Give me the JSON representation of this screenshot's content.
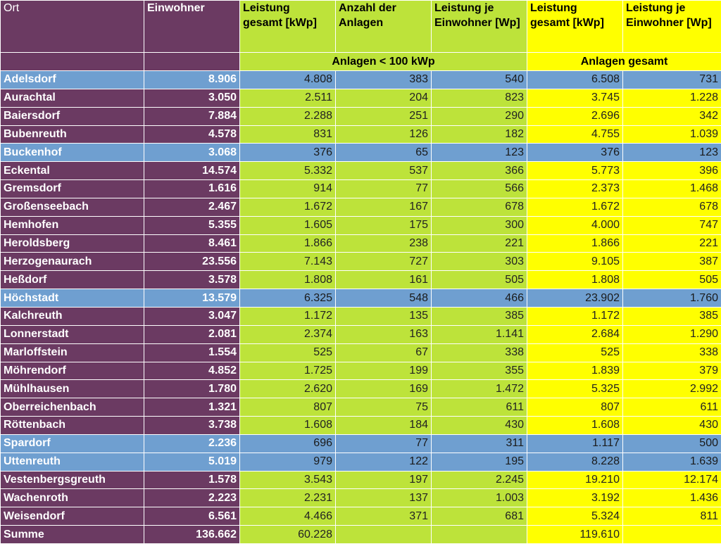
{
  "headers": {
    "ort": "Ort",
    "einwohner": "Einwohner",
    "leistung_gesamt": "Leistung gesamt [kWp]",
    "anzahl_anlagen": "Anzahl der Anlagen",
    "leistung_je_einwohner": "Leistung je Einwohner [Wp]",
    "leistung_gesamt_2": "Leistung gesamt [kWp]",
    "leistung_je_einwohner_2": "Leistung je Einwohner [Wp]"
  },
  "group_labels": {
    "small": "Anlagen < 100 kWp",
    "all": "Anlagen gesamt"
  },
  "colors": {
    "purple": "#6b3a62",
    "green": "#bde33a",
    "yellow": "#ffff00",
    "blue_highlight": "#6f9fd0"
  },
  "rows": [
    {
      "ort": "Adelsdorf",
      "einwohner": "8.906",
      "leistung": "4.808",
      "anzahl": "383",
      "je_einwohner": "540",
      "leistung_gesamt": "6.508",
      "je_einwohner_gesamt": "731",
      "highlight": true
    },
    {
      "ort": "Aurachtal",
      "einwohner": "3.050",
      "leistung": "2.511",
      "anzahl": "204",
      "je_einwohner": "823",
      "leistung_gesamt": "3.745",
      "je_einwohner_gesamt": "1.228",
      "highlight": false
    },
    {
      "ort": "Baiersdorf",
      "einwohner": "7.884",
      "leistung": "2.288",
      "anzahl": "251",
      "je_einwohner": "290",
      "leistung_gesamt": "2.696",
      "je_einwohner_gesamt": "342",
      "highlight": false
    },
    {
      "ort": "Bubenreuth",
      "einwohner": "4.578",
      "leistung": "831",
      "anzahl": "126",
      "je_einwohner": "182",
      "leistung_gesamt": "4.755",
      "je_einwohner_gesamt": "1.039",
      "highlight": false
    },
    {
      "ort": "Buckenhof",
      "einwohner": "3.068",
      "leistung": "376",
      "anzahl": "65",
      "je_einwohner": "123",
      "leistung_gesamt": "376",
      "je_einwohner_gesamt": "123",
      "highlight": true
    },
    {
      "ort": "Eckental",
      "einwohner": "14.574",
      "leistung": "5.332",
      "anzahl": "537",
      "je_einwohner": "366",
      "leistung_gesamt": "5.773",
      "je_einwohner_gesamt": "396",
      "highlight": false
    },
    {
      "ort": "Gremsdorf",
      "einwohner": "1.616",
      "leistung": "914",
      "anzahl": "77",
      "je_einwohner": "566",
      "leistung_gesamt": "2.373",
      "je_einwohner_gesamt": "1.468",
      "highlight": false
    },
    {
      "ort": "Großenseebach",
      "einwohner": "2.467",
      "leistung": "1.672",
      "anzahl": "167",
      "je_einwohner": "678",
      "leistung_gesamt": "1.672",
      "je_einwohner_gesamt": "678",
      "highlight": false
    },
    {
      "ort": "Hemhofen",
      "einwohner": "5.355",
      "leistung": "1.605",
      "anzahl": "175",
      "je_einwohner": "300",
      "leistung_gesamt": "4.000",
      "je_einwohner_gesamt": "747",
      "highlight": false
    },
    {
      "ort": "Heroldsberg",
      "einwohner": "8.461",
      "leistung": "1.866",
      "anzahl": "238",
      "je_einwohner": "221",
      "leistung_gesamt": "1.866",
      "je_einwohner_gesamt": "221",
      "highlight": false
    },
    {
      "ort": "Herzogenaurach",
      "einwohner": "23.556",
      "leistung": "7.143",
      "anzahl": "727",
      "je_einwohner": "303",
      "leistung_gesamt": "9.105",
      "je_einwohner_gesamt": "387",
      "highlight": false
    },
    {
      "ort": "Heßdorf",
      "einwohner": "3.578",
      "leistung": "1.808",
      "anzahl": "161",
      "je_einwohner": "505",
      "leistung_gesamt": "1.808",
      "je_einwohner_gesamt": "505",
      "highlight": false
    },
    {
      "ort": "Höchstadt",
      "einwohner": "13.579",
      "leistung": "6.325",
      "anzahl": "548",
      "je_einwohner": "466",
      "leistung_gesamt": "23.902",
      "je_einwohner_gesamt": "1.760",
      "highlight": true
    },
    {
      "ort": "Kalchreuth",
      "einwohner": "3.047",
      "leistung": "1.172",
      "anzahl": "135",
      "je_einwohner": "385",
      "leistung_gesamt": "1.172",
      "je_einwohner_gesamt": "385",
      "highlight": false
    },
    {
      "ort": "Lonnerstadt",
      "einwohner": "2.081",
      "leistung": "2.374",
      "anzahl": "163",
      "je_einwohner": "1.141",
      "leistung_gesamt": "2.684",
      "je_einwohner_gesamt": "1.290",
      "highlight": false
    },
    {
      "ort": "Marloffstein",
      "einwohner": "1.554",
      "leistung": "525",
      "anzahl": "67",
      "je_einwohner": "338",
      "leistung_gesamt": "525",
      "je_einwohner_gesamt": "338",
      "highlight": false
    },
    {
      "ort": "Möhrendorf",
      "einwohner": "4.852",
      "leistung": "1.725",
      "anzahl": "199",
      "je_einwohner": "355",
      "leistung_gesamt": "1.839",
      "je_einwohner_gesamt": "379",
      "highlight": false
    },
    {
      "ort": "Mühlhausen",
      "einwohner": "1.780",
      "leistung": "2.620",
      "anzahl": "169",
      "je_einwohner": "1.472",
      "leistung_gesamt": "5.325",
      "je_einwohner_gesamt": "2.992",
      "highlight": false
    },
    {
      "ort": "Oberreichenbach",
      "einwohner": "1.321",
      "leistung": "807",
      "anzahl": "75",
      "je_einwohner": "611",
      "leistung_gesamt": "807",
      "je_einwohner_gesamt": "611",
      "highlight": false
    },
    {
      "ort": "Röttenbach",
      "einwohner": "3.738",
      "leistung": "1.608",
      "anzahl": "184",
      "je_einwohner": "430",
      "leistung_gesamt": "1.608",
      "je_einwohner_gesamt": "430",
      "highlight": false
    },
    {
      "ort": "Spardorf",
      "einwohner": "2.236",
      "leistung": "696",
      "anzahl": "77",
      "je_einwohner": "311",
      "leistung_gesamt": "1.117",
      "je_einwohner_gesamt": "500",
      "highlight": true
    },
    {
      "ort": "Uttenreuth",
      "einwohner": "5.019",
      "leistung": "979",
      "anzahl": "122",
      "je_einwohner": "195",
      "leistung_gesamt": "8.228",
      "je_einwohner_gesamt": "1.639",
      "highlight": true
    },
    {
      "ort": "Vestenbergsgreuth",
      "einwohner": "1.578",
      "leistung": "3.543",
      "anzahl": "197",
      "je_einwohner": "2.245",
      "leistung_gesamt": "19.210",
      "je_einwohner_gesamt": "12.174",
      "highlight": false
    },
    {
      "ort": "Wachenroth",
      "einwohner": "2.223",
      "leistung": "2.231",
      "anzahl": "137",
      "je_einwohner": "1.003",
      "leistung_gesamt": "3.192",
      "je_einwohner_gesamt": "1.436",
      "highlight": false
    },
    {
      "ort": "Weisendorf",
      "einwohner": "6.561",
      "leistung": "4.466",
      "anzahl": "371",
      "je_einwohner": "681",
      "leistung_gesamt": "5.324",
      "je_einwohner_gesamt": "811",
      "highlight": false
    }
  ],
  "summe": {
    "label": "Summe",
    "einwohner": "136.662",
    "leistung": "60.228",
    "anzahl": "",
    "je_einwohner": "",
    "leistung_gesamt": "119.610",
    "je_einwohner_gesamt": ""
  }
}
